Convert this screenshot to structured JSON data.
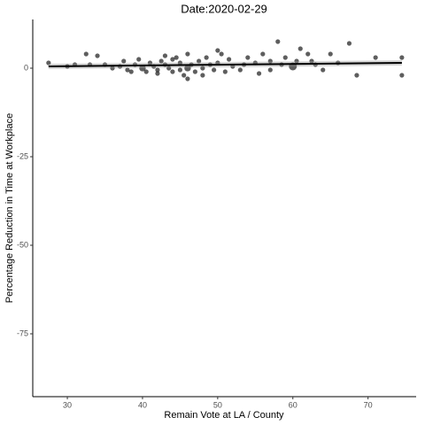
{
  "chart_data": {
    "type": "scatter",
    "title": "Date:2020-02-29",
    "x_label": "Remain Vote at LA / County",
    "y_label": "Percentage Reduction in Time at Workplace",
    "xlim": [
      25.4,
      76.4
    ],
    "xticks": [
      30,
      40,
      50,
      60,
      70
    ],
    "ylim": [
      -92.75,
      13.75
    ],
    "yticks": [
      0,
      -25,
      -50,
      -75
    ],
    "color": "#1a1a1a",
    "x": [
      27.5,
      30,
      31,
      32.5,
      33,
      34,
      35,
      36,
      37,
      37.5,
      38,
      38.5,
      39,
      39.5,
      40,
      40.5,
      41,
      41.5,
      42,
      42,
      42.5,
      43,
      43,
      43.5,
      44,
      44,
      44.5,
      45,
      45,
      45.5,
      46,
      46,
      46,
      46.5,
      47,
      47.5,
      48,
      48,
      48.5,
      49,
      49.5,
      50,
      50,
      50.5,
      51,
      51.5,
      52,
      53,
      53.5,
      54,
      55,
      55.5,
      56,
      57,
      57,
      58,
      58.5,
      59,
      60,
      60.5,
      61,
      62,
      62.5,
      63,
      64,
      65,
      66,
      67.5,
      68.5,
      71,
      74.5,
      74.5
    ],
    "values": [
      1.5,
      0.5,
      1,
      4,
      1,
      3.5,
      1,
      0,
      0.5,
      2,
      -0.5,
      -1,
      1,
      2.5,
      0,
      -1,
      1.5,
      0.5,
      -0.5,
      -1.5,
      2,
      1,
      3.5,
      0,
      2.5,
      -1,
      3,
      1.5,
      -0.5,
      -2,
      4,
      0,
      -3,
      1,
      -1,
      2,
      0,
      -2,
      3,
      1,
      -0.5,
      1.5,
      5,
      4,
      -1,
      2.5,
      0.5,
      -0.5,
      1,
      3,
      1.5,
      -1.5,
      4,
      2,
      -0.5,
      7.5,
      1,
      3,
      0.5,
      2,
      5.5,
      4,
      2,
      1,
      -0.5,
      4,
      1.5,
      7,
      -2,
      3,
      -2,
      3
    ],
    "sizes": [
      1,
      1,
      1,
      1,
      1,
      1,
      1,
      1,
      1,
      1,
      1,
      1,
      1,
      1,
      2,
      1,
      1,
      1,
      1,
      1,
      1,
      1,
      1,
      1,
      1,
      1,
      1,
      1,
      1,
      1,
      1,
      2,
      1,
      1,
      1,
      1,
      1,
      1,
      1,
      1,
      1,
      1,
      1,
      1,
      1,
      1,
      1,
      1,
      1,
      1,
      1,
      1,
      1,
      1,
      1,
      1,
      1,
      1,
      3,
      1,
      1,
      1,
      1,
      1,
      1,
      1,
      1,
      1,
      1,
      1,
      1,
      1
    ],
    "trend": {
      "x": [
        27.5,
        74.5
      ],
      "values": [
        0.5,
        1.5
      ]
    }
  }
}
